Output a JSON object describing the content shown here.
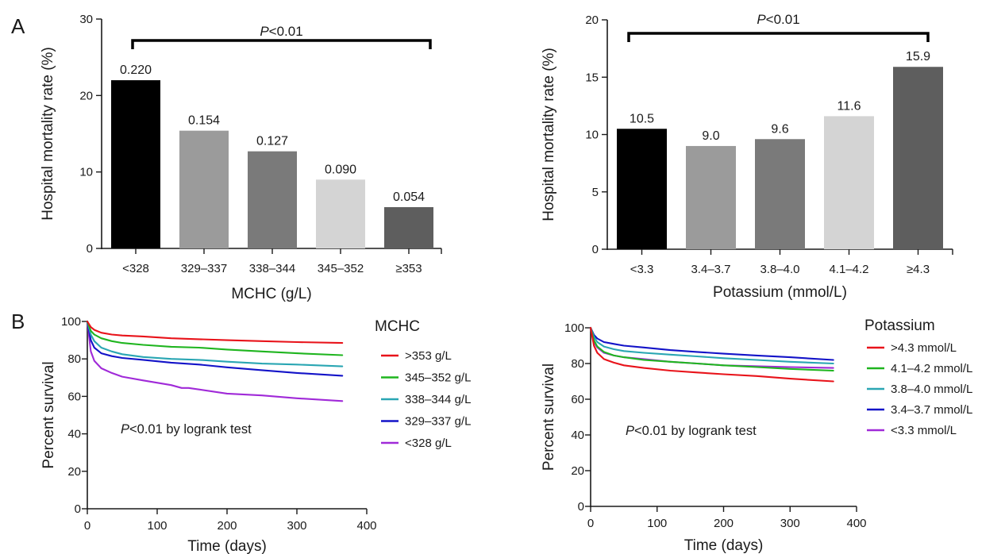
{
  "panel_letters": [
    "A",
    "B"
  ],
  "chart_data": [
    {
      "type": "bar",
      "panel": "A",
      "ylabel": "Hospital mortality rate (%)",
      "xlabel": "MCHC (g/L)",
      "ylim": [
        0,
        30
      ],
      "yticks": [
        0,
        10,
        20,
        30
      ],
      "categories": [
        "<328",
        "329–337",
        "338–344",
        "345–352",
        "≥353"
      ],
      "values": [
        22.0,
        15.4,
        12.7,
        9.0,
        5.4
      ],
      "labels": [
        "0.220",
        "0.154",
        "0.127",
        "0.090",
        "0.054"
      ],
      "colors": [
        "#000000",
        "#9b9b9b",
        "#7a7a7a",
        "#d4d4d4",
        "#5e5e5e"
      ],
      "significance": {
        "p_italic": "P",
        "rest": "<0.01"
      }
    },
    {
      "type": "bar",
      "panel": "A",
      "ylabel": "Hospital mortality rate (%)",
      "xlabel": "Potassium (mmol/L)",
      "ylim": [
        0,
        20
      ],
      "yticks": [
        0,
        5,
        10,
        15,
        20
      ],
      "categories": [
        "<3.3",
        "3.4–3.7",
        "3.8–4.0",
        "4.1–4.2",
        "≥4.3"
      ],
      "values": [
        10.5,
        9.0,
        9.6,
        11.6,
        15.9
      ],
      "labels": [
        "10.5",
        "9.0",
        "9.6",
        "11.6",
        "15.9"
      ],
      "colors": [
        "#000000",
        "#9b9b9b",
        "#7a7a7a",
        "#d4d4d4",
        "#5e5e5e"
      ],
      "significance": {
        "p_italic": "P",
        "rest": "<0.01"
      }
    },
    {
      "type": "line",
      "panel": "B",
      "ylabel": "Percent survival",
      "xlabel": "Time (days)",
      "xlim": [
        0,
        400
      ],
      "ylim": [
        0,
        100
      ],
      "xticks": [
        0,
        100,
        200,
        300,
        400
      ],
      "yticks": [
        0,
        20,
        40,
        60,
        80,
        100
      ],
      "legend_title": "MCHC",
      "annotation": {
        "p_italic": "P",
        "rest": "<0.01 by logrank test"
      },
      "series": [
        {
          "name": ">353 g/L",
          "color": "#e8131a",
          "x": [
            0,
            5,
            10,
            20,
            35,
            50,
            80,
            120,
            160,
            200,
            250,
            300,
            365
          ],
          "y": [
            100,
            97,
            95.5,
            94,
            93,
            92.5,
            92,
            91,
            90.5,
            90,
            89.5,
            89,
            88.5
          ]
        },
        {
          "name": "345–352 g/L",
          "color": "#1fb51f",
          "x": [
            0,
            5,
            10,
            20,
            35,
            50,
            80,
            120,
            160,
            200,
            250,
            300,
            365
          ],
          "y": [
            100,
            95,
            93,
            91,
            89.5,
            88.5,
            87.5,
            86.5,
            86,
            85,
            84,
            83,
            82
          ]
        },
        {
          "name": "338–344 g/L",
          "color": "#2aa6b3",
          "x": [
            0,
            5,
            10,
            20,
            35,
            50,
            80,
            120,
            160,
            200,
            250,
            300,
            365
          ],
          "y": [
            100,
            93,
            89.5,
            86,
            84,
            82.5,
            81,
            80,
            79.5,
            78.5,
            77.5,
            77,
            76
          ]
        },
        {
          "name": "329–337 g/L",
          "color": "#1313c8",
          "x": [
            0,
            5,
            10,
            20,
            35,
            50,
            80,
            120,
            160,
            200,
            250,
            300,
            365
          ],
          "y": [
            100,
            90,
            86,
            83,
            81.5,
            80.5,
            79.5,
            78,
            77,
            75.5,
            74,
            72.5,
            71
          ]
        },
        {
          "name": "<328 g/L",
          "color": "#a02ad8",
          "x": [
            0,
            5,
            10,
            20,
            35,
            50,
            80,
            120,
            135,
            145,
            200,
            250,
            300,
            365
          ],
          "y": [
            100,
            84,
            79,
            75,
            72.5,
            70.5,
            68.5,
            66,
            64.5,
            64.5,
            61.5,
            60.5,
            59,
            57.5
          ]
        }
      ]
    },
    {
      "type": "line",
      "panel": "B",
      "ylabel": "Percent survival",
      "xlabel": "Time (days)",
      "xlim": [
        0,
        400
      ],
      "ylim": [
        0,
        100
      ],
      "xticks": [
        0,
        100,
        200,
        300,
        400
      ],
      "yticks": [
        0,
        20,
        40,
        60,
        80,
        100
      ],
      "legend_title": "Potassium",
      "annotation": {
        "p_italic": "P",
        "rest": "<0.01 by logrank test"
      },
      "series": [
        {
          "name": ">4.3 mmol/L",
          "color": "#e8131a",
          "x": [
            0,
            5,
            10,
            20,
            35,
            50,
            80,
            120,
            160,
            200,
            250,
            300,
            365
          ],
          "y": [
            100,
            90,
            86,
            82.5,
            80.5,
            79,
            77.5,
            76,
            75,
            74,
            73,
            71.5,
            70
          ]
        },
        {
          "name": "4.1–4.2 mmol/L",
          "color": "#1fb51f",
          "x": [
            0,
            5,
            10,
            20,
            35,
            50,
            80,
            120,
            160,
            200,
            250,
            300,
            365
          ],
          "y": [
            100,
            93,
            89.5,
            86.5,
            84.5,
            83.5,
            82,
            81,
            80,
            79,
            78,
            77,
            76
          ]
        },
        {
          "name": "3.8–4.0 mmol/L",
          "color": "#2aa6b3",
          "x": [
            0,
            5,
            10,
            20,
            35,
            50,
            80,
            120,
            160,
            200,
            250,
            300,
            365
          ],
          "y": [
            100,
            95,
            92,
            89.5,
            88,
            87,
            86,
            85,
            84,
            83,
            82,
            81,
            80
          ]
        },
        {
          "name": "3.4–3.7 mmol/L",
          "color": "#1313c8",
          "x": [
            0,
            5,
            10,
            20,
            35,
            50,
            80,
            120,
            160,
            200,
            250,
            300,
            365
          ],
          "y": [
            100,
            96,
            94,
            92,
            91,
            90,
            89,
            87.5,
            86.5,
            85.5,
            84.5,
            83.5,
            82
          ]
        },
        {
          "name": "<3.3 mmol/L",
          "color": "#a02ad8",
          "x": [
            0,
            5,
            10,
            20,
            35,
            50,
            80,
            120,
            160,
            200,
            250,
            300,
            365
          ],
          "y": [
            100,
            92,
            89,
            86,
            84.5,
            83.5,
            82.5,
            81,
            80,
            79,
            78.5,
            78,
            77.5
          ]
        }
      ]
    }
  ]
}
